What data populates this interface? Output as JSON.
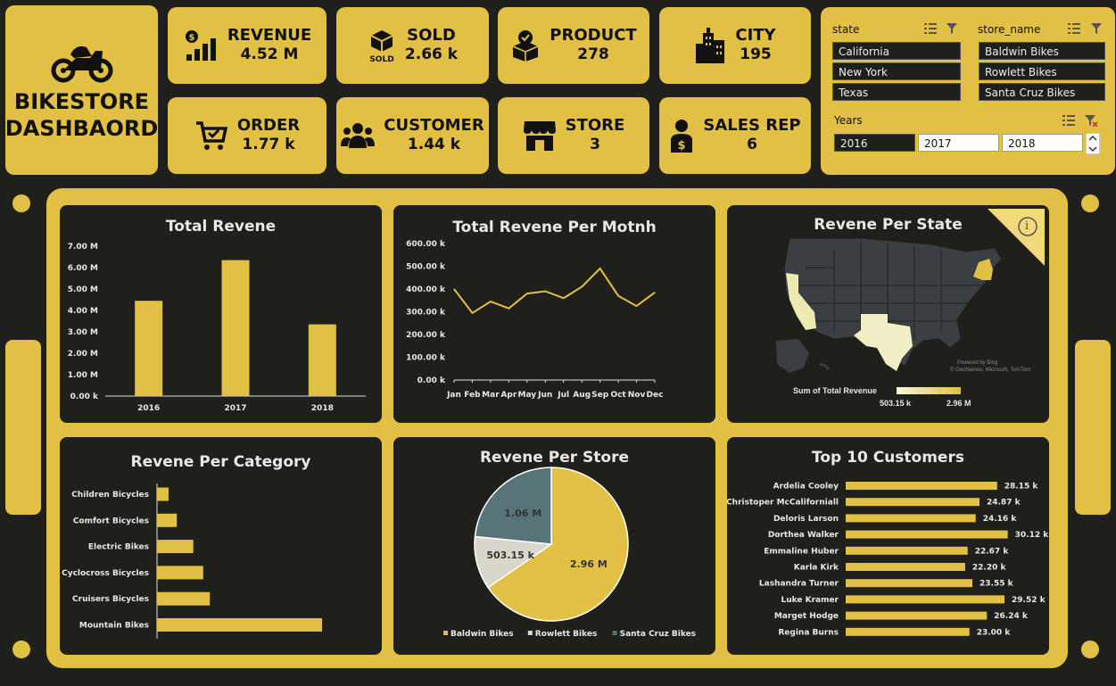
{
  "dashboard_title": "BIKESTORE DASHBAORD",
  "kpis": {
    "revenue": {
      "label": "REVENUE",
      "value": "4.52 M"
    },
    "sold": {
      "label": "SOLD",
      "value": "2.66 k",
      "icon_text": "SOLD"
    },
    "product": {
      "label": "PRODUCT",
      "value": "278"
    },
    "city": {
      "label": "CITY",
      "value": "195"
    },
    "order": {
      "label": "ORDER",
      "value": "1.77 k"
    },
    "customer": {
      "label": "CUSTOMER",
      "value": "1.44 k"
    },
    "store": {
      "label": "STORE",
      "value": "3"
    },
    "sales_rep": {
      "label": "SALES REP",
      "value": "6"
    }
  },
  "slicers": {
    "state": {
      "title": "state",
      "items": [
        "California",
        "New York",
        "Texas"
      ]
    },
    "store_name": {
      "title": "store_name",
      "items": [
        "Baldwin Bikes",
        "Rowlett Bikes",
        "Santa Cruz Bikes"
      ]
    },
    "years": {
      "title": "Years",
      "items": [
        "2016",
        "2017",
        "2018"
      ],
      "selected": "2016"
    }
  },
  "map": {
    "title": "Revene Per State",
    "legend_title": "Sum of Total Revenue",
    "legend_min": "503.15 k",
    "legend_max": "2.96 M",
    "attribution": "Powered by Bing",
    "attribution2": "© GeoNames, Microsoft, TomTom",
    "info_icon": "i"
  },
  "colors": {
    "accent": "#e2c044",
    "background": "#1f1f1c",
    "panel": "#1f1f1c",
    "store_santa_cruz": "#577478",
    "store_rowlett": "#d9d6cc"
  },
  "chart_data": [
    {
      "type": "bar",
      "title": "Total Revene",
      "categories": [
        "2016",
        "2017",
        "2018"
      ],
      "values": [
        4.45,
        6.35,
        3.35
      ],
      "value_unit": "M",
      "yticks": [
        "0.00 k",
        "1.00 M",
        "2.00 M",
        "3.00 M",
        "4.00 M",
        "5.00 M",
        "6.00 M",
        "7.00 M"
      ],
      "ylim": [
        0,
        7
      ]
    },
    {
      "type": "line",
      "title": "Total Revene Per Motnh",
      "categories": [
        "Jan",
        "Feb",
        "Mar",
        "Apr",
        "May",
        "Jun",
        "Jul",
        "Aug",
        "Sep",
        "Oct",
        "Nov",
        "Dec"
      ],
      "values": [
        400,
        295,
        345,
        315,
        380,
        390,
        360,
        410,
        490,
        370,
        325,
        385
      ],
      "yticks": [
        "0.00 k",
        "100.00 k",
        "200.00 k",
        "300.00 k",
        "400.00 k",
        "500.00 k",
        "600.00 k"
      ],
      "ylim": [
        0,
        600
      ]
    },
    {
      "type": "bar",
      "orientation": "horizontal",
      "title": "Revene Per Category",
      "categories": [
        "Children Bicycles",
        "Comfort Bicycles",
        "Electric Bikes",
        "Cyclocross Bicycles",
        "Cruisers Bicycles",
        "Mountain Bikes"
      ],
      "values": [
        0.07,
        0.12,
        0.22,
        0.28,
        0.32,
        1.0
      ]
    },
    {
      "type": "pie",
      "title": "Revene Per Store",
      "slices": [
        {
          "name": "Baldwin Bikes",
          "value": 2.96,
          "label": "2.96 M",
          "color": "#e2c044"
        },
        {
          "name": "Rowlett Bikes",
          "value": 0.50315,
          "label": "503.15 k",
          "color": "#d9d6cc"
        },
        {
          "name": "Santa Cruz Bikes",
          "value": 1.06,
          "label": "1.06 M",
          "color": "#577478"
        }
      ]
    },
    {
      "type": "bar",
      "orientation": "horizontal",
      "title": "Top 10 Customers",
      "categories": [
        "Ardelia Cooley",
        "Christoper McCaliforniall",
        "Deloris Larson",
        "Dorthea Walker",
        "Emmaline Huber",
        "Karla Kirk",
        "Lashandra Turner",
        "Luke Kramer",
        "Marget Hodge",
        "Regina Burns"
      ],
      "values": [
        28.15,
        24.87,
        24.16,
        30.12,
        22.67,
        22.2,
        23.55,
        29.52,
        26.24,
        23.0
      ],
      "labels": [
        "28.15 k",
        "24.87 k",
        "24.16 k",
        "30.12 k",
        "22.67 k",
        "22.20 k",
        "23.55 k",
        "29.52 k",
        "26.24 k",
        "23.00 k"
      ]
    }
  ]
}
